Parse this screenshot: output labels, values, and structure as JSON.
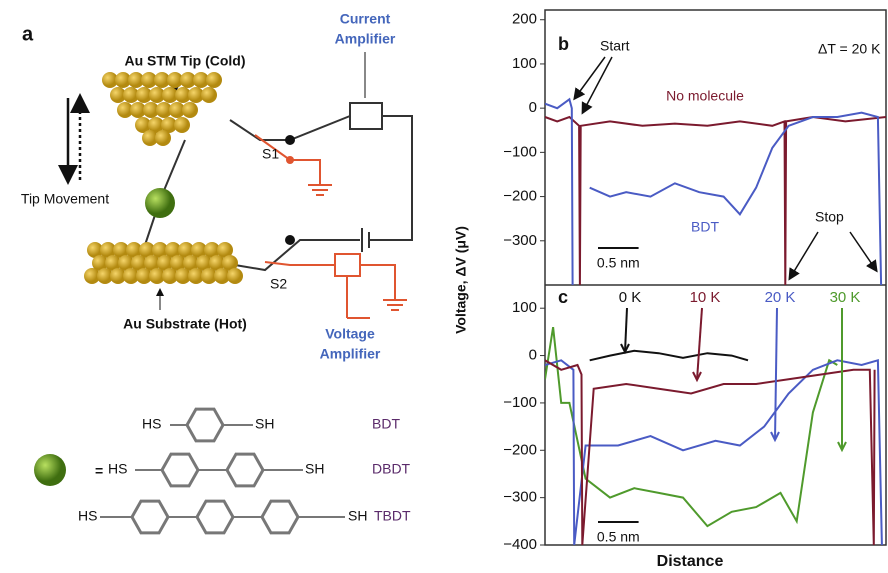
{
  "panel_a": {
    "label": "a",
    "tip": "Au STM Tip (Cold)",
    "current_amplifier": [
      "Current",
      "Amplifier"
    ],
    "s1": "S1",
    "tip_movement": "Tip Movement",
    "s2": "S2",
    "substrate": "Au Substrate (Hot)",
    "voltage_amplifier": [
      "Voltage",
      "Amplifier"
    ],
    "equals": "=",
    "molecules": [
      {
        "left": "HS",
        "right": "SH",
        "name": "BDT"
      },
      {
        "left": "HS",
        "right": "SH",
        "name": "DBDT"
      },
      {
        "left": "HS",
        "right": "SH",
        "name": "TBDT"
      }
    ]
  },
  "y_label": "Voltage, ΔV (μV)",
  "x_label": "Distance",
  "chart_data": [
    {
      "type": "line",
      "label": "b",
      "xlim": [
        0,
        4.2
      ],
      "ylim": [
        -400,
        222
      ],
      "yticks": [
        {
          "value": -300,
          "label": "−300"
        },
        {
          "value": -200,
          "label": "−200"
        },
        {
          "value": -100,
          "label": "−100"
        },
        0,
        100,
        200
      ],
      "annotations": {
        "start": "Start",
        "stop": "Stop",
        "delta_t": "ΔT = 20 K"
      },
      "scale_bar": {
        "length": 0.5,
        "label": "0.5 nm"
      },
      "series": [
        {
          "name": "No molecule",
          "color": "#7b1a2e",
          "x": [
            0,
            0.15,
            0.3,
            0.42,
            0.43,
            0.44,
            0.8,
            1.2,
            1.6,
            2.0,
            2.4,
            2.8,
            2.95,
            2.96,
            2.97,
            3.3,
            3.7,
            4.2
          ],
          "values": [
            -20,
            -30,
            -20,
            -40,
            -400,
            -40,
            -30,
            -40,
            -35,
            -40,
            -30,
            -40,
            -30,
            -400,
            -30,
            -20,
            -30,
            -20
          ]
        },
        {
          "name": "BDT",
          "color": "#4a5bc4",
          "x": [
            0,
            0.15,
            0.3,
            0.33,
            0.34,
            0.5,
            0.55,
            0.8,
            1.0,
            1.3,
            1.6,
            1.9,
            2.2,
            2.4,
            2.6,
            2.8,
            3.0,
            3.3,
            3.6,
            3.9,
            4.1,
            4.14
          ],
          "values": [
            10,
            0,
            20,
            0,
            -400,
            null,
            -180,
            -200,
            -190,
            -200,
            -170,
            -190,
            -200,
            -240,
            -180,
            -90,
            -40,
            -20,
            -20,
            -10,
            -20,
            -400
          ]
        }
      ]
    },
    {
      "type": "line",
      "label": "c",
      "xlim": [
        0,
        4.2
      ],
      "ylim": [
        -400,
        149
      ],
      "yticks": [
        {
          "value": -400,
          "label": "−400"
        },
        {
          "value": -300,
          "label": "−300"
        },
        {
          "value": -200,
          "label": "−200"
        },
        {
          "value": -100,
          "label": "−100"
        },
        0,
        100
      ],
      "scale_bar": {
        "length": 0.5,
        "label": "0.5 nm"
      },
      "series": [
        {
          "name": "30 K",
          "color": "#4f9a2c",
          "x": [
            0,
            0.1,
            0.2,
            0.3,
            0.5,
            0.8,
            1.1,
            1.4,
            1.7,
            2.0,
            2.3,
            2.6,
            2.9,
            3.1,
            3.3,
            3.5,
            3.6
          ],
          "values": [
            -50,
            60,
            -100,
            -100,
            -260,
            -300,
            -280,
            -290,
            -300,
            -360,
            -330,
            -320,
            -290,
            -350,
            -120,
            -10,
            -20
          ]
        },
        {
          "name": "20 K",
          "color": "#4a5bc4",
          "x": [
            0,
            0.2,
            0.35,
            0.36,
            0.5,
            0.9,
            1.3,
            1.7,
            2.1,
            2.4,
            2.7,
            3.0,
            3.3,
            3.6,
            3.9,
            4.1,
            4.15
          ],
          "values": [
            -20,
            -10,
            -30,
            -400,
            -190,
            -190,
            -170,
            -200,
            -180,
            -190,
            -150,
            -80,
            -30,
            -10,
            -20,
            -10,
            -400
          ]
        },
        {
          "name": "10 K",
          "color": "#7b1a2e",
          "x": [
            0,
            0.2,
            0.4,
            0.45,
            0.46,
            0.6,
            1.0,
            1.4,
            1.8,
            2.2,
            2.6,
            3.0,
            3.4,
            3.8,
            4.0,
            4.05,
            4.06
          ],
          "values": [
            -10,
            -30,
            -20,
            -40,
            -400,
            -70,
            -60,
            -70,
            -80,
            -60,
            -60,
            -50,
            -40,
            -30,
            -30,
            -400,
            -30
          ]
        },
        {
          "name": "0 K",
          "color": "#111111",
          "x": [
            0.55,
            0.8,
            1.1,
            1.4,
            1.7,
            2.0,
            2.3,
            2.5
          ],
          "values": [
            -10,
            0,
            10,
            5,
            -5,
            5,
            0,
            -10
          ]
        }
      ]
    }
  ]
}
